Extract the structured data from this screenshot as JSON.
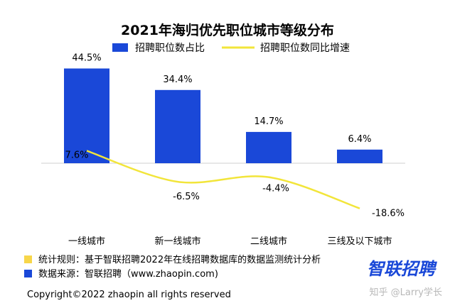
{
  "chart_data": {
    "type": "bar",
    "title": "2021年海归优先职位城市等级分布",
    "categories": [
      "一线城市",
      "新一线城市",
      "二线城市",
      "三线及以下城市"
    ],
    "series": [
      {
        "name": "招聘职位数占比",
        "values": [
          44.5,
          34.4,
          14.7,
          6.4
        ],
        "labels": [
          "44.5%",
          "34.4%",
          "14.7%",
          "6.4%"
        ],
        "color": "#1a48d8",
        "kind": "bar"
      },
      {
        "name": "招聘职位数同比增速",
        "values": [
          7.6,
          -6.5,
          -4.4,
          -18.6
        ],
        "labels": [
          "7.6%",
          "-6.5%",
          "-4.4%",
          "-18.6%"
        ],
        "color": "#f2e53a",
        "kind": "line"
      }
    ],
    "legend_position": "top",
    "grid": false
  },
  "footnotes": {
    "rule": "统计规则：基于智联招聘2022年在线招聘数据库的数据监测统计分析",
    "source": "数据来源：智联招聘（www.zhaopin.com)",
    "rule_color": "#f7d64a",
    "source_color": "#1a48d8"
  },
  "copyright": "Copyright©2022 zhaopin all rights reserved",
  "brand": "智联招聘",
  "watermark": "知乎 @Larry学长"
}
